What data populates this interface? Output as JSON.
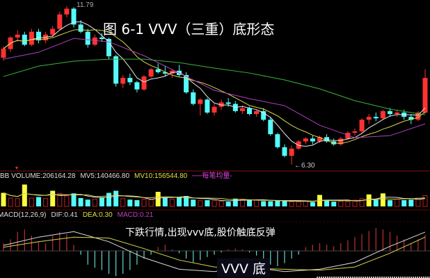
{
  "chart_data": {
    "type": "candlestick",
    "title": "图 6-1 VVV（三重）底形态",
    "price_range": [
      6.1,
      12.0
    ],
    "annotations": {
      "high": "11.79",
      "low": "←6.30"
    },
    "candles": [
      [
        10.0,
        10.4,
        9.9,
        10.31
      ],
      [
        10.3,
        10.75,
        10.2,
        10.7
      ],
      [
        10.7,
        10.95,
        10.55,
        10.8
      ],
      [
        10.8,
        10.9,
        10.4,
        10.45
      ],
      [
        10.45,
        11.0,
        10.4,
        10.9
      ],
      [
        10.9,
        11.0,
        10.5,
        10.6
      ],
      [
        10.6,
        10.9,
        10.5,
        10.8
      ],
      [
        10.8,
        11.1,
        10.7,
        11.0
      ],
      [
        11.0,
        11.6,
        10.95,
        11.5
      ],
      [
        11.5,
        11.79,
        11.4,
        11.7
      ],
      [
        11.7,
        11.75,
        11.05,
        11.15
      ],
      [
        11.15,
        11.3,
        10.85,
        10.9
      ],
      [
        10.9,
        11.0,
        10.35,
        10.45
      ],
      [
        10.45,
        10.8,
        10.4,
        10.7
      ],
      [
        10.7,
        10.85,
        10.55,
        10.65
      ],
      [
        10.65,
        10.7,
        9.95,
        10.05
      ],
      [
        10.05,
        10.1,
        9.0,
        9.1
      ],
      [
        9.1,
        9.4,
        8.95,
        9.3
      ],
      [
        9.3,
        9.45,
        9.05,
        9.15
      ],
      [
        9.15,
        9.2,
        8.8,
        8.9
      ],
      [
        8.9,
        9.4,
        8.85,
        9.35
      ],
      [
        9.35,
        9.65,
        9.3,
        9.6
      ],
      [
        9.6,
        9.8,
        9.45,
        9.5
      ],
      [
        9.5,
        9.7,
        9.35,
        9.45
      ],
      [
        9.45,
        9.6,
        9.3,
        9.55
      ],
      [
        9.55,
        9.75,
        9.35,
        9.4
      ],
      [
        9.4,
        9.5,
        8.75,
        8.8
      ],
      [
        8.8,
        8.9,
        8.35,
        8.4
      ],
      [
        8.4,
        8.6,
        8.0,
        8.55
      ],
      [
        8.55,
        8.6,
        8.05,
        8.1
      ],
      [
        8.1,
        8.4,
        8.0,
        8.3
      ],
      [
        8.3,
        8.55,
        8.2,
        8.45
      ],
      [
        8.45,
        8.6,
        8.3,
        8.4
      ],
      [
        8.4,
        8.5,
        8.1,
        8.15
      ],
      [
        8.15,
        8.35,
        8.05,
        8.25
      ],
      [
        8.25,
        8.3,
        8.0,
        8.05
      ],
      [
        8.05,
        8.2,
        7.95,
        8.15
      ],
      [
        8.15,
        8.25,
        7.8,
        7.85
      ],
      [
        7.85,
        7.95,
        7.3,
        7.35
      ],
      [
        7.35,
        7.4,
        6.85,
        6.9
      ],
      [
        6.9,
        7.0,
        6.55,
        6.6
      ],
      [
        6.6,
        6.95,
        6.3,
        6.85
      ],
      [
        6.85,
        7.15,
        6.8,
        7.1
      ],
      [
        7.1,
        7.25,
        7.0,
        7.2
      ],
      [
        7.2,
        7.3,
        7.0,
        7.1
      ],
      [
        7.1,
        7.3,
        7.05,
        7.25
      ],
      [
        7.25,
        7.35,
        7.05,
        7.1
      ],
      [
        7.1,
        7.2,
        6.95,
        7.0
      ],
      [
        7.0,
        7.25,
        6.95,
        7.2
      ],
      [
        7.2,
        7.45,
        7.15,
        7.4
      ],
      [
        7.4,
        7.55,
        7.3,
        7.45
      ],
      [
        7.45,
        7.9,
        7.4,
        7.85
      ],
      [
        7.85,
        8.05,
        7.7,
        7.95
      ],
      [
        7.95,
        8.1,
        7.8,
        7.9
      ],
      [
        7.9,
        8.2,
        7.85,
        8.15
      ],
      [
        8.15,
        8.25,
        7.95,
        8.05
      ],
      [
        8.05,
        8.2,
        7.95,
        8.1
      ],
      [
        8.1,
        8.2,
        7.85,
        7.95
      ],
      [
        7.95,
        8.05,
        7.7,
        7.85
      ],
      [
        7.85,
        8.15,
        7.8,
        8.1
      ],
      [
        8.1,
        9.6,
        8.05,
        9.3
      ]
    ],
    "ma_purple": [
      9.95,
      10.19,
      10.67,
      10.55,
      10.07,
      9.47,
      8.87,
      8.58,
      8.34,
      7.66,
      7.23,
      7.3,
      7.71
    ],
    "ma_green": [
      9.35,
      9.71,
      9.88,
      9.95,
      9.95,
      9.83,
      9.64,
      9.47,
      9.23,
      8.92,
      8.51,
      8.22,
      8.02
    ],
    "colors": {
      "up": "#ff3232",
      "down": "#54fcfc",
      "ma5": "#e8e8e8",
      "ma10": "#d8d84a",
      "ma20": "#b040c0",
      "ma60": "#3cb43c",
      "volume_flag": "#ffff3c"
    },
    "volume": {
      "header": "BB VOLUME:206164.28",
      "mv5": "MV5:140466.80",
      "mv10": "MV10:156544.80",
      "legend": "每笔均量",
      "max": 480000,
      "values": [
        260000,
        160000,
        150000,
        420000,
        160000,
        180000,
        150000,
        300000,
        250000,
        200000,
        250000,
        160000,
        130000,
        140000,
        170000,
        260000,
        300000,
        150000,
        130000,
        120000,
        140000,
        130000,
        280000,
        170000,
        140000,
        180000,
        200000,
        130000,
        110000,
        120000,
        110000,
        100000,
        90000,
        150000,
        140000,
        130000,
        120000,
        100000,
        100000,
        110000,
        100000,
        90000,
        90000,
        100000,
        80000,
        220000,
        120000,
        90000,
        100000,
        90000,
        120000,
        150000,
        230000,
        130000,
        250000,
        120000,
        140000,
        120000,
        130000,
        160000,
        206164.28
      ],
      "flagged": [
        0,
        3,
        7,
        22,
        45,
        52,
        54
      ]
    },
    "macd": {
      "header": "MACD(12,26,9)",
      "dif": "DIF:0.41",
      "dea": "DEA:0.30",
      "macd": "MACD:0.21",
      "histogram": [
        0.1,
        0.15,
        0.25,
        0.28,
        0.2,
        0.12,
        0.1,
        0.2,
        0.25,
        0.22,
        0.08,
        -0.05,
        -0.18,
        -0.22,
        -0.25,
        -0.3,
        -0.33,
        -0.3,
        -0.25,
        -0.18,
        -0.1,
        -0.05,
        0.05,
        0.08,
        0.02,
        -0.03,
        -0.1,
        -0.15,
        -0.12,
        -0.08,
        -0.05,
        -0.02,
        0.02,
        0.03,
        0.02,
        -0.02,
        -0.06,
        -0.12,
        -0.18,
        -0.2,
        -0.16,
        -0.1,
        -0.05,
        0.05,
        0.08,
        0.1,
        0.08,
        0.06,
        0.1,
        0.14,
        0.18,
        0.22,
        0.26,
        0.3,
        0.28,
        0.25,
        0.2,
        0.15,
        0.1,
        0.15,
        0.21
      ],
      "dif_line": [
        0.12,
        0.3,
        0.42,
        0.2,
        -0.15,
        -0.4,
        -0.45,
        -0.35,
        -0.45,
        -0.4,
        -0.25,
        0.1,
        0.41
      ],
      "dea_line": [
        0.08,
        0.2,
        0.3,
        0.28,
        0.05,
        -0.2,
        -0.35,
        -0.38,
        -0.4,
        -0.42,
        -0.35,
        -0.05,
        0.3
      ]
    },
    "captions": {
      "main": "下跌行情,出现vvv底,股价触底反弹",
      "pattern": "VVV 底"
    }
  }
}
